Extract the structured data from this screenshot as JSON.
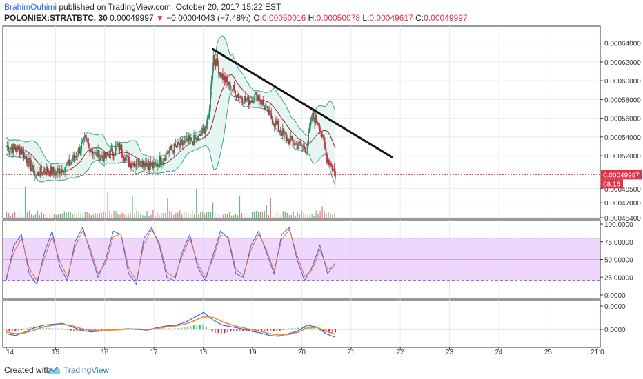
{
  "header": {
    "author": "BrahimOuhimi",
    "published": "published on TradingView.com, October 20, 2017 15:22 EST",
    "symbol": "POLONIEX:STRATBTC, 30",
    "last": "0.00049997",
    "change": "−0.00004043 (−7.48%)",
    "o_label": "O:",
    "o_value": "0.00050016",
    "h_label": "H:",
    "h_value": "0.00050078",
    "l_label": "L:",
    "l_value": "0.00049617",
    "c_label": "C:",
    "c_value": "0.00049997"
  },
  "footer": {
    "created_with": "Created with",
    "brand": "TradingView"
  },
  "chart_data": [
    {
      "type": "candlestick",
      "panel": "price",
      "x_ticks": [
        "14",
        "15",
        "16",
        "17",
        "18",
        "19",
        "20",
        "21",
        "22",
        "23",
        "24",
        "25",
        "21:0"
      ],
      "y_ticks": [
        "0.00064000",
        "0.00062000",
        "0.00060000",
        "0.00058000",
        "0.00056000",
        "0.00054000",
        "0.00052000",
        "0.00048500",
        "0.00047000",
        "0.00045400"
      ],
      "ylim": [
        0.000454,
        0.00065
      ],
      "last_price_label": "0.00049997",
      "countdown_label": "08:16",
      "close_path": [
        [
          14.0,
          0.00053
        ],
        [
          14.3,
          0.000526
        ],
        [
          14.6,
          0.0005
        ],
        [
          14.8,
          0.000505
        ],
        [
          15.0,
          0.000502
        ],
        [
          15.3,
          0.000512
        ],
        [
          15.6,
          0.000536
        ],
        [
          15.8,
          0.000522
        ],
        [
          16.0,
          0.000518
        ],
        [
          16.3,
          0.00053
        ],
        [
          16.5,
          0.000512
        ],
        [
          16.8,
          0.000514
        ],
        [
          17.0,
          0.000508
        ],
        [
          17.3,
          0.000525
        ],
        [
          17.6,
          0.000533
        ],
        [
          17.9,
          0.000538
        ],
        [
          18.1,
          0.000556
        ],
        [
          18.2,
          0.000628
        ],
        [
          18.35,
          0.000608
        ],
        [
          18.5,
          0.000596
        ],
        [
          18.7,
          0.000585
        ],
        [
          18.9,
          0.000578
        ],
        [
          19.1,
          0.000585
        ],
        [
          19.3,
          0.000566
        ],
        [
          19.5,
          0.000552
        ],
        [
          19.7,
          0.000538
        ],
        [
          19.9,
          0.000532
        ],
        [
          20.1,
          0.000528
        ],
        [
          20.2,
          0.000562
        ],
        [
          20.35,
          0.000556
        ],
        [
          20.5,
          0.000519
        ],
        [
          20.6,
          0.000511
        ],
        [
          20.68,
          0.0005
        ]
      ],
      "trendline": [
        [
          18.18,
          0.000634
        ],
        [
          21.85,
          0.000518
        ]
      ]
    },
    {
      "type": "line",
      "panel": "stochastic",
      "y_ticks": [
        "100.0000",
        "75.00000",
        "50.00000",
        "25.00000",
        "0.0000"
      ],
      "ylim": [
        0,
        100
      ],
      "bands": [
        20,
        80
      ],
      "series": [
        {
          "values": [
            20,
            70,
            85,
            30,
            15,
            60,
            90,
            40,
            20,
            75,
            95,
            60,
            25,
            50,
            90,
            85,
            30,
            15,
            80,
            95,
            70,
            25,
            20,
            60,
            85,
            40,
            20,
            55,
            90,
            80,
            30,
            25,
            70,
            90,
            60,
            30,
            85,
            95,
            50,
            20,
            40,
            70,
            30,
            45
          ]
        },
        {
          "values": [
            25,
            60,
            80,
            38,
            20,
            52,
            82,
            48,
            25,
            68,
            90,
            65,
            30,
            45,
            82,
            86,
            38,
            20,
            72,
            92,
            74,
            32,
            25,
            55,
            80,
            45,
            25,
            50,
            84,
            82,
            36,
            28,
            64,
            86,
            64,
            34,
            78,
            92,
            56,
            26,
            36,
            64,
            36,
            40
          ]
        }
      ]
    },
    {
      "type": "line",
      "panel": "macd",
      "y_ticks": [
        "0.0000",
        "0.0000"
      ],
      "series": [
        {
          "values": [
            -10,
            -14,
            -6,
            4,
            10,
            12,
            14,
            6,
            -2,
            -6,
            -4,
            -2,
            0,
            2,
            0,
            -2,
            4,
            8,
            10,
            16,
            28,
            40,
            22,
            10,
            6,
            2,
            -4,
            -8,
            -14,
            -16,
            -10,
            -4,
            10,
            6,
            -10,
            -18
          ]
        },
        {
          "values": [
            -6,
            -10,
            -8,
            -2,
            6,
            10,
            12,
            9,
            2,
            -2,
            -3,
            -2,
            -1,
            1,
            1,
            0,
            2,
            6,
            8,
            12,
            20,
            30,
            28,
            18,
            10,
            5,
            0,
            -4,
            -10,
            -13,
            -12,
            -7,
            3,
            5,
            -3,
            -12
          ]
        }
      ]
    }
  ]
}
